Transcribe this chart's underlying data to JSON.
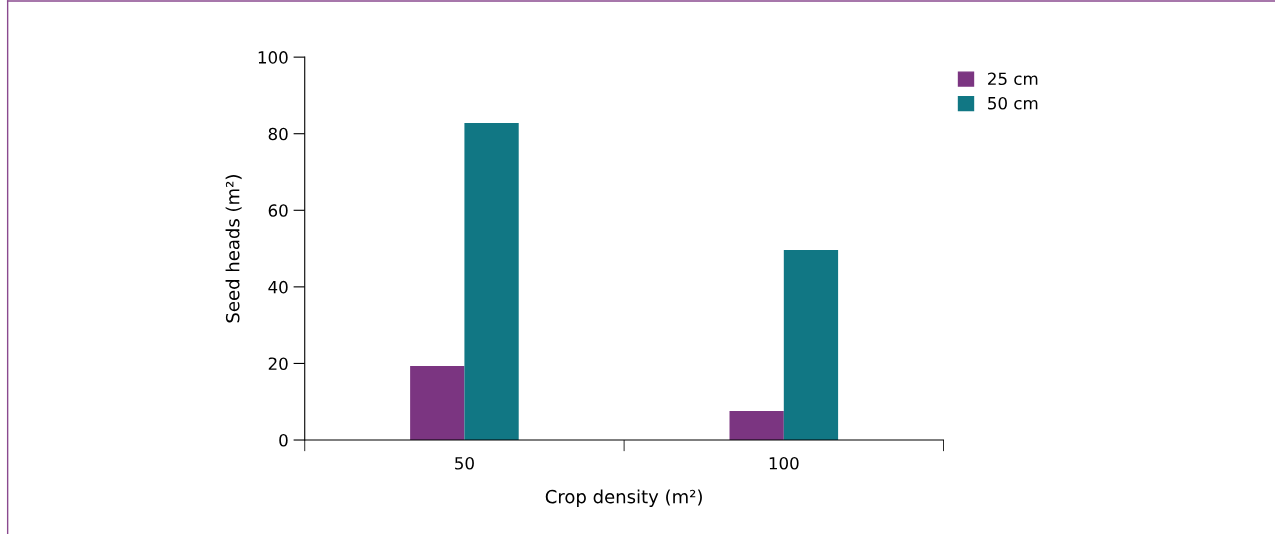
{
  "chart_data": {
    "type": "bar",
    "xlabel": "Crop density (m²)",
    "ylabel": "Seed heads (m²)",
    "categories": [
      "50",
      "100"
    ],
    "series": [
      {
        "name": "25 cm",
        "color": "#7b3581",
        "values": [
          19.3,
          7.6
        ]
      },
      {
        "name": "50 cm",
        "color": "#117784",
        "values": [
          82.8,
          49.6
        ]
      }
    ],
    "ylim": [
      0,
      100
    ],
    "yticks": [
      0,
      20,
      40,
      60,
      80,
      100
    ],
    "grid": false,
    "legend": "top right"
  }
}
